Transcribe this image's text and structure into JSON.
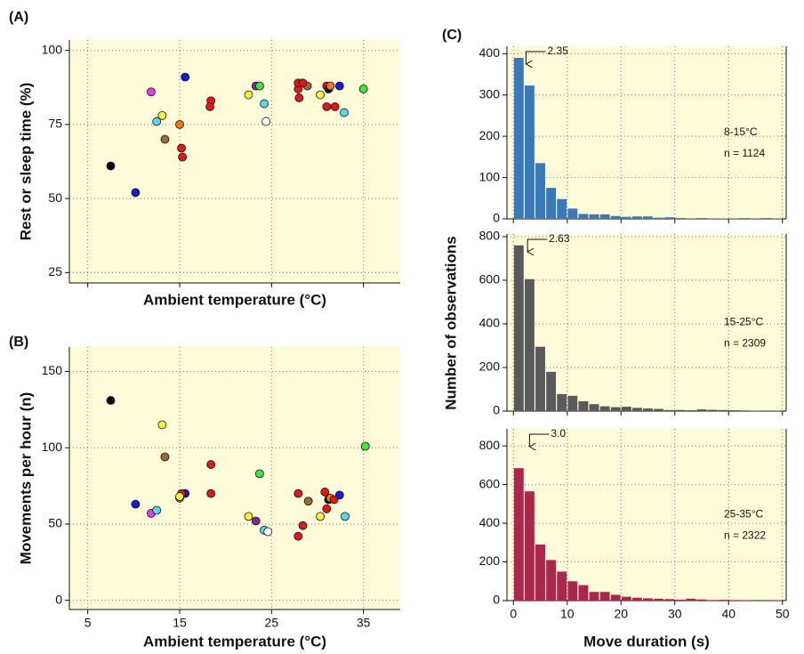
{
  "chart_data": [
    {
      "type": "scatter",
      "panel": "(A)",
      "xlabel": "Ambient temperature (°C)",
      "ylabel": "Rest or sleep time (%)",
      "xlim": [
        3,
        39
      ],
      "xticks": [
        5,
        15,
        25,
        35
      ],
      "xtick_labels": false,
      "ylim": [
        21.5,
        103.5
      ],
      "yticks": [
        25,
        50,
        75,
        100
      ],
      "grid": true,
      "background": "#fdfbd8",
      "x": [
        7.5,
        10.2,
        11.9,
        12.5,
        13.1,
        13.4,
        15,
        15.6,
        15.2,
        15.3,
        18.4,
        18.3,
        22.5,
        23.3,
        23.7,
        24.2,
        24.4,
        27.9,
        28,
        27.9,
        28.9,
        28.4,
        30.3,
        31,
        31,
        31.2,
        31.4,
        31.9,
        32.4,
        32.9,
        35
      ],
      "values": [
        61,
        52,
        86,
        76,
        78,
        70,
        75,
        91,
        67,
        64,
        83,
        81,
        85,
        88,
        88,
        82,
        76,
        87,
        84,
        89,
        88,
        89,
        85,
        88,
        81,
        87,
        88,
        81,
        88,
        79,
        87
      ],
      "colors": [
        "#000000",
        "#1a1adc",
        "#e83ce8",
        "#55d8e8",
        "#f5f03c",
        "#9a6a3a",
        "#f07818",
        "#1a1adc",
        "#e01818",
        "#e01818",
        "#e01818",
        "#e01818",
        "#f5f03c",
        "#7a2a9a",
        "#3ce83c",
        "#55d8e8",
        "#ffffff",
        "#e01818",
        "#e01818",
        "#e01818",
        "#9a6a3a",
        "#e01818",
        "#f5f03c",
        "#e01818",
        "#e01818",
        "#000000",
        "#f07818",
        "#e01818",
        "#1a1adc",
        "#55d8e8",
        "#3ce83c"
      ]
    },
    {
      "type": "scatter",
      "panel": "(B)",
      "xlabel": "Ambient temperature (°C)",
      "ylabel": "Movements per hour (n)",
      "xlim": [
        3,
        39
      ],
      "xticks": [
        5,
        15,
        25,
        35
      ],
      "xtick_labels": true,
      "ylim": [
        -6,
        166
      ],
      "yticks": [
        0,
        50,
        100,
        150
      ],
      "grid": true,
      "background": "#fdfbd8",
      "x": [
        7.5,
        10.2,
        11.9,
        12.5,
        13.1,
        13.4,
        15,
        15.6,
        15.2,
        15.0,
        18.4,
        18.4,
        22.5,
        23.3,
        23.7,
        24.2,
        24.6,
        27.9,
        28.4,
        27.9,
        29,
        30.8,
        31,
        31.2,
        30.3,
        31.4,
        31.8,
        32.4,
        33,
        35.2
      ],
      "values": [
        131,
        63,
        57,
        59,
        115,
        94,
        67,
        70,
        70,
        68,
        89,
        70,
        55,
        52,
        83,
        46,
        45,
        70,
        49,
        42,
        65,
        71,
        60,
        66,
        55,
        67,
        66,
        69,
        55,
        101
      ],
      "colors": [
        "#000000",
        "#1a1adc",
        "#e83ce8",
        "#55d8e8",
        "#f5f03c",
        "#9a6a3a",
        "#f07818",
        "#1a1adc",
        "#e01818",
        "#f5f03c",
        "#e01818",
        "#e01818",
        "#f5f03c",
        "#7a2a9a",
        "#3ce83c",
        "#55d8e8",
        "#ffffff",
        "#e01818",
        "#e01818",
        "#e01818",
        "#9a6a3a",
        "#e01818",
        "#e01818",
        "#000000",
        "#f5f03c",
        "#f07818",
        "#e01818",
        "#1a1adc",
        "#55d8e8",
        "#3ce83c"
      ]
    },
    {
      "type": "histogram",
      "panel": "(C)",
      "ylabel": "Number of observations",
      "color": "#3a78b8",
      "background": "#fdfbd8",
      "grid": true,
      "xlim": [
        -1.2,
        50.7
      ],
      "xticks": [
        0,
        10,
        20,
        30,
        40,
        50
      ],
      "xtick_labels": false,
      "ylim": [
        0,
        418
      ],
      "yticks": [
        0,
        100,
        200,
        300,
        400
      ],
      "bins": [
        0,
        2,
        4,
        6,
        8,
        10,
        12,
        14,
        16,
        18,
        20,
        22,
        24,
        26,
        28,
        30,
        32,
        34,
        36,
        38,
        40,
        42,
        44,
        46,
        48,
        50
      ],
      "values": [
        390,
        323,
        135,
        75,
        48,
        25,
        12,
        11,
        11,
        7,
        5,
        6,
        6,
        3,
        4,
        2,
        1,
        2,
        1,
        1,
        1,
        0,
        1,
        2,
        1
      ],
      "marker": 2.35,
      "group": "8-15°C",
      "n": "n = 1124"
    },
    {
      "type": "histogram",
      "color": "#5a5a5a",
      "background": "#fdfbd8",
      "grid": true,
      "xlim": [
        -1.2,
        50.7
      ],
      "xticks": [
        0,
        10,
        20,
        30,
        40,
        50
      ],
      "xtick_labels": false,
      "ylim": [
        0,
        812
      ],
      "yticks": [
        0,
        200,
        400,
        600,
        800
      ],
      "bins": [
        0,
        2,
        4,
        6,
        8,
        10,
        12,
        14,
        16,
        18,
        20,
        22,
        24,
        26,
        28,
        30,
        32,
        34,
        36,
        38,
        40,
        42,
        44,
        46,
        48,
        50
      ],
      "values": [
        760,
        605,
        295,
        180,
        78,
        70,
        45,
        32,
        22,
        18,
        20,
        15,
        12,
        10,
        5,
        5,
        4,
        8,
        6,
        5,
        4,
        3,
        2,
        1,
        1
      ],
      "marker": 2.63,
      "group": "15-25°C",
      "n": "n = 2309"
    },
    {
      "type": "histogram",
      "xlabel": "Move duration (s)",
      "color": "#a8284a",
      "background": "#fdfbd8",
      "grid": true,
      "xlim": [
        -1.2,
        50.7
      ],
      "xticks": [
        0,
        10,
        20,
        30,
        40,
        50
      ],
      "xtick_labels": true,
      "ylim": [
        0,
        888
      ],
      "yticks": [
        0,
        200,
        400,
        600,
        800
      ],
      "bins": [
        0,
        2,
        4,
        6,
        8,
        10,
        12,
        14,
        16,
        18,
        20,
        22,
        24,
        26,
        28,
        30,
        32,
        34,
        36,
        38,
        40,
        42,
        44,
        46,
        48,
        50
      ],
      "values": [
        685,
        565,
        290,
        210,
        150,
        100,
        80,
        45,
        45,
        30,
        20,
        15,
        12,
        10,
        8,
        5,
        10,
        6,
        3,
        4,
        3,
        2,
        1,
        1,
        2
      ],
      "marker": {
        "value": 3.0,
        "label": "3.0"
      },
      "group": "25-35°C",
      "n": "n = 2322"
    }
  ]
}
